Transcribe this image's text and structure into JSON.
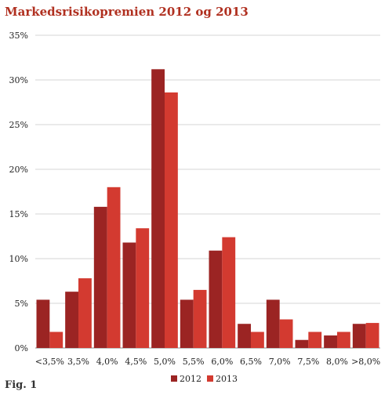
{
  "chart_data": {
    "type": "bar",
    "title": "Markedsrisikopremien 2012 og 2013",
    "caption": "Fig. 1",
    "categories": [
      "<3,5%",
      "3,5%",
      "4,0%",
      "4,5%",
      "5,0%",
      "5,5%",
      "6,0%",
      "6,5%",
      "7,0%",
      "7,5%",
      "8,0%",
      ">8,0%"
    ],
    "series": [
      {
        "name": "2012",
        "color": "#9b2423",
        "values": [
          5.4,
          6.3,
          15.8,
          11.8,
          31.2,
          5.4,
          10.9,
          2.7,
          5.4,
          0.9,
          1.4,
          2.7
        ]
      },
      {
        "name": "2013",
        "color": "#d33a30",
        "values": [
          1.8,
          7.8,
          18.0,
          13.4,
          28.6,
          6.5,
          12.4,
          1.8,
          3.2,
          1.8,
          1.8,
          2.8
        ]
      }
    ],
    "yticks": [
      "0%",
      "5%",
      "10%",
      "15%",
      "20%",
      "25%",
      "30%",
      "35%"
    ],
    "ylim": [
      0,
      35
    ],
    "grid": true,
    "legend_position": "bottom-center"
  }
}
